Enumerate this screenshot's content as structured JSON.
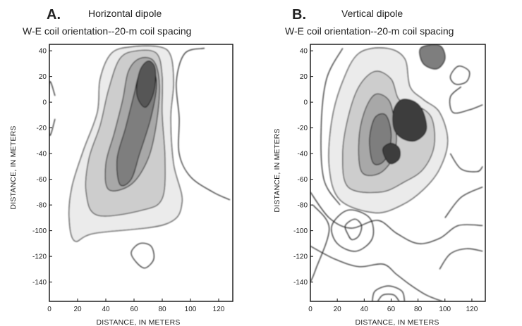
{
  "chart_data": [
    {
      "type": "contour",
      "panel_label": "A.",
      "title": "Horizontal dipole",
      "subtitle": "W-E coil orientation--20-m coil spacing",
      "xlabel": "DISTANCE, IN METERS",
      "ylabel": "DISTANCE, IN METERS",
      "x_ticks": [
        "0",
        "20",
        "40",
        "60",
        "80",
        "100",
        "120"
      ],
      "y_ticks": [
        "40",
        "20",
        "0",
        "-20",
        "-40",
        "-60",
        "-80",
        "-100",
        "-120",
        "-140"
      ],
      "xlim": [
        0,
        130
      ],
      "ylim": [
        -155,
        45
      ],
      "grid": false,
      "colors": {
        "level1": "#ebebeb",
        "level2": "#cdcdcd",
        "level3": "#a8a8a8",
        "level4": "#7e7e7e",
        "level5": "#565656"
      },
      "contour_levels": [
        {
          "level": 1,
          "points": [
            [
              32,
              -102
            ],
            [
              18,
              -108
            ],
            [
              14,
              -90
            ],
            [
              16,
              -66
            ],
            [
              24,
              -38
            ],
            [
              34,
              -8
            ],
            [
              36,
              18
            ],
            [
              44,
              38
            ],
            [
              58,
              43
            ],
            [
              78,
              43
            ],
            [
              86,
              36
            ],
            [
              88,
              14
            ],
            [
              86,
              -12
            ],
            [
              88,
              -48
            ],
            [
              94,
              -78
            ],
            [
              82,
              -95
            ]
          ]
        },
        {
          "level": 2,
          "points": [
            [
              34,
              -88
            ],
            [
              26,
              -70
            ],
            [
              28,
              -44
            ],
            [
              36,
              -18
            ],
            [
              42,
              10
            ],
            [
              50,
              34
            ],
            [
              62,
              40
            ],
            [
              76,
              38
            ],
            [
              80,
              20
            ],
            [
              80,
              -10
            ],
            [
              82,
              -45
            ],
            [
              80,
              -75
            ],
            [
              66,
              -84
            ]
          ]
        },
        {
          "level": 3,
          "points": [
            [
              42,
              -68
            ],
            [
              40,
              -48
            ],
            [
              46,
              -24
            ],
            [
              52,
              2
            ],
            [
              56,
              24
            ],
            [
              64,
              34
            ],
            [
              74,
              32
            ],
            [
              78,
              14
            ],
            [
              76,
              -16
            ],
            [
              70,
              -44
            ],
            [
              58,
              -64
            ]
          ]
        },
        {
          "level": 4,
          "points": [
            [
              50,
              -64
            ],
            [
              48,
              -44
            ],
            [
              54,
              -20
            ],
            [
              60,
              6
            ],
            [
              64,
              22
            ],
            [
              72,
              28
            ],
            [
              76,
              14
            ],
            [
              72,
              -12
            ],
            [
              64,
              -40
            ],
            [
              58,
              -60
            ]
          ]
        },
        {
          "level": 5,
          "points": [
            [
              62,
              6
            ],
            [
              64,
              24
            ],
            [
              70,
              32
            ],
            [
              75,
              26
            ],
            [
              74,
              8
            ],
            [
              68,
              -4
            ]
          ]
        }
      ],
      "isolines": [
        {
          "points": [
            [
              4,
              -13
            ],
            [
              0,
              -25
            ],
            [
              0,
              15
            ],
            [
              4,
              5
            ]
          ],
          "closed": false
        },
        {
          "points": [
            [
              62,
              -125
            ],
            [
              58,
              -117
            ],
            [
              64,
              -110
            ],
            [
              72,
              -112
            ],
            [
              74,
              -122
            ],
            [
              68,
              -129
            ]
          ],
          "closed": true
        },
        {
          "points": [
            [
              110,
              42
            ],
            [
              96,
              38
            ],
            [
              90,
              16
            ],
            [
              92,
              -12
            ],
            [
              92,
              -40
            ],
            [
              100,
              -58
            ],
            [
              116,
              -70
            ],
            [
              128,
              -76
            ]
          ],
          "closed": false
        }
      ]
    },
    {
      "type": "contour",
      "panel_label": "B.",
      "title": "Vertical dipole",
      "subtitle": "W-E coil orientation--20-m coil spacing",
      "xlabel": "DISTANCE, IN METERS",
      "ylabel": "DISTANCE, IN METERS",
      "x_ticks": [
        "0",
        "20",
        "40",
        "60",
        "80",
        "100",
        "120"
      ],
      "y_ticks": [
        "40",
        "20",
        "0",
        "-20",
        "-40",
        "-60",
        "-80",
        "-100",
        "-120",
        "-140"
      ],
      "xlim": [
        0,
        130
      ],
      "ylim": [
        -155,
        45
      ],
      "grid": false,
      "colors": {
        "level1": "#ebebeb",
        "level2": "#cdcdcd",
        "level3": "#a8a8a8",
        "level4": "#7e7e7e",
        "level5": "#3e3e3e"
      },
      "contour_levels": [
        {
          "level": 1,
          "points": [
            [
              22,
              -76
            ],
            [
              14,
              -50
            ],
            [
              16,
              -14
            ],
            [
              24,
              16
            ],
            [
              36,
              38
            ],
            [
              56,
              42
            ],
            [
              70,
              34
            ],
            [
              74,
              12
            ],
            [
              84,
              2
            ],
            [
              96,
              -8
            ],
            [
              102,
              -30
            ],
            [
              96,
              -52
            ],
            [
              84,
              -68
            ],
            [
              68,
              -80
            ],
            [
              48,
              -86
            ]
          ]
        },
        {
          "level": 2,
          "points": [
            [
              28,
              -66
            ],
            [
              24,
              -40
            ],
            [
              28,
              -12
            ],
            [
              36,
              12
            ],
            [
              48,
              24
            ],
            [
              60,
              18
            ],
            [
              66,
              2
            ],
            [
              78,
              -2
            ],
            [
              90,
              -12
            ],
            [
              92,
              -34
            ],
            [
              84,
              -52
            ],
            [
              70,
              -62
            ],
            [
              52,
              -70
            ]
          ]
        },
        {
          "level": 3,
          "points": [
            [
              38,
              -54
            ],
            [
              36,
              -30
            ],
            [
              40,
              -8
            ],
            [
              48,
              6
            ],
            [
              58,
              2
            ],
            [
              62,
              -12
            ],
            [
              64,
              -30
            ],
            [
              60,
              -46
            ],
            [
              50,
              -56
            ]
          ]
        },
        {
          "level": 4,
          "points": [
            [
              46,
              -46
            ],
            [
              44,
              -28
            ],
            [
              48,
              -12
            ],
            [
              56,
              -10
            ],
            [
              60,
              -24
            ],
            [
              58,
              -40
            ],
            [
              52,
              -48
            ]
          ]
        },
        {
          "level": 5,
          "points": [
            [
              62,
              -20
            ],
            [
              62,
              -6
            ],
            [
              68,
              2
            ],
            [
              78,
              0
            ],
            [
              84,
              -8
            ],
            [
              86,
              -22
            ],
            [
              78,
              -30
            ],
            [
              68,
              -28
            ]
          ]
        },
        {
          "level": 5,
          "points": [
            [
              56,
              -44
            ],
            [
              54,
              -36
            ],
            [
              60,
              -32
            ],
            [
              66,
              -36
            ],
            [
              66,
              -44
            ],
            [
              60,
              -48
            ]
          ]
        },
        {
          "level": 4,
          "points": [
            [
              84,
              30
            ],
            [
              82,
              42
            ],
            [
              96,
              44
            ],
            [
              100,
              34
            ],
            [
              94,
              26
            ]
          ]
        }
      ],
      "isolines": [
        {
          "points": [
            [
              22,
              -80
            ],
            [
              10,
              -60
            ],
            [
              8,
              -20
            ],
            [
              12,
              18
            ],
            [
              24,
              42
            ]
          ],
          "closed": false
        },
        {
          "points": [
            [
              100,
              -90
            ],
            [
              112,
              -74
            ],
            [
              128,
              -66
            ]
          ],
          "closed": false
        },
        {
          "points": [
            [
              0,
              -70
            ],
            [
              14,
              -90
            ],
            [
              30,
              -98
            ],
            [
              50,
              -92
            ],
            [
              64,
              -102
            ],
            [
              80,
              -110
            ],
            [
              96,
              -106
            ],
            [
              110,
              -96
            ],
            [
              128,
              -96
            ]
          ],
          "closed": false
        },
        {
          "points": [
            [
              28,
              -103
            ],
            [
              26,
              -96
            ],
            [
              33,
              -91
            ],
            [
              38,
              -96
            ],
            [
              36,
              -104
            ],
            [
              31,
              -107
            ]
          ],
          "closed": true
        },
        {
          "points": [
            [
              20,
              -110
            ],
            [
              16,
              -96
            ],
            [
              28,
              -84
            ],
            [
              44,
              -90
            ],
            [
              46,
              -106
            ],
            [
              34,
              -116
            ]
          ],
          "closed": true
        },
        {
          "points": [
            [
              0,
              -112
            ],
            [
              18,
              -122
            ],
            [
              36,
              -128
            ],
            [
              54,
              -126
            ],
            [
              64,
              -134
            ],
            [
              74,
              -142
            ],
            [
              86,
              -150
            ],
            [
              98,
              -155
            ]
          ],
          "closed": false
        },
        {
          "points": [
            [
              46,
              -155
            ],
            [
              48,
              -147
            ],
            [
              58,
              -143
            ],
            [
              68,
              -147
            ],
            [
              70,
              -155
            ]
          ],
          "closed": false
        },
        {
          "points": [
            [
              50,
              -155
            ],
            [
              54,
              -150
            ],
            [
              62,
              -150
            ],
            [
              66,
              -155
            ]
          ],
          "closed": false
        },
        {
          "points": [
            [
              96,
              -130
            ],
            [
              104,
              -118
            ],
            [
              116,
              -114
            ],
            [
              128,
              -116
            ]
          ],
          "closed": false
        },
        {
          "points": [
            [
              112,
              12
            ],
            [
              104,
              4
            ],
            [
              106,
              -8
            ],
            [
              118,
              -6
            ],
            [
              128,
              -2
            ]
          ],
          "closed": false
        },
        {
          "points": [
            [
              110,
              28
            ],
            [
              104,
              20
            ],
            [
              108,
              14
            ],
            [
              116,
              16
            ],
            [
              118,
              24
            ]
          ],
          "closed": true
        },
        {
          "points": [
            [
              104,
              -40
            ],
            [
              112,
              -52
            ],
            [
              124,
              -54
            ],
            [
              128,
              -50
            ]
          ],
          "closed": false
        },
        {
          "points": [
            [
              2,
              -80
            ],
            [
              14,
              -98
            ],
            [
              4,
              -130
            ],
            [
              0,
              -140
            ]
          ],
          "closed": false
        }
      ]
    }
  ]
}
